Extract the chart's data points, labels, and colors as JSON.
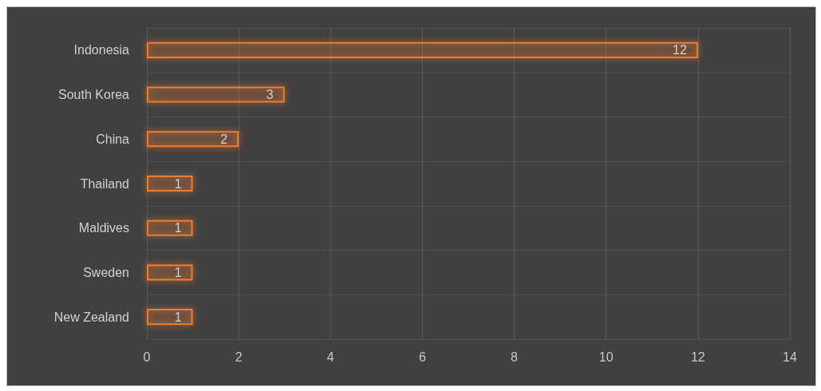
{
  "chart_data": {
    "type": "bar",
    "orientation": "horizontal",
    "categories": [
      "Indonesia",
      "South Korea",
      "China",
      "Thailand",
      "Maldives",
      "Sweden",
      "New Zealand"
    ],
    "values": [
      12,
      3,
      2,
      1,
      1,
      1,
      1
    ],
    "color": "#ed7d31",
    "xlim": [
      0,
      14
    ],
    "xticks": [
      0,
      2,
      4,
      6,
      8,
      10,
      12,
      14
    ],
    "grid": true,
    "data_labels": true
  }
}
